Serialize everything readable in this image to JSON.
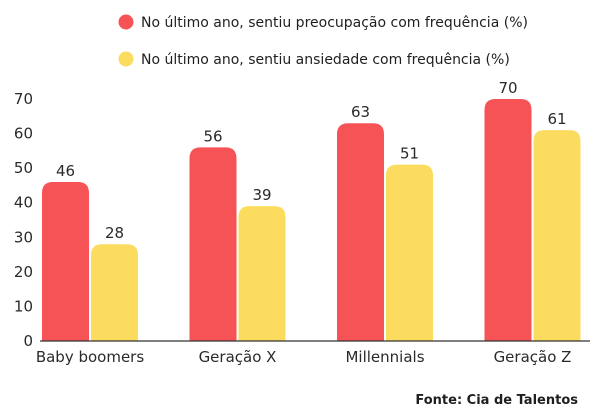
{
  "chart_data": {
    "type": "bar",
    "categories": [
      "Baby boomers",
      "Geração X",
      "Millennials",
      "Geração Z"
    ],
    "series": [
      {
        "name": "No último ano, sentiu preocupação com frequência (%)",
        "color": "#f65357",
        "values": [
          46,
          56,
          63,
          70
        ]
      },
      {
        "name": "No último ano, sentiu ansiedade com frequência (%)",
        "color": "#fbdc5f",
        "values": [
          28,
          39,
          51,
          61
        ]
      }
    ],
    "yticks": [
      0,
      10,
      20,
      30,
      40,
      50,
      60,
      70
    ],
    "ylim": [
      0,
      70
    ],
    "grid": false,
    "legend_position": "top",
    "source": "Fonte: Cia de Talentos"
  }
}
